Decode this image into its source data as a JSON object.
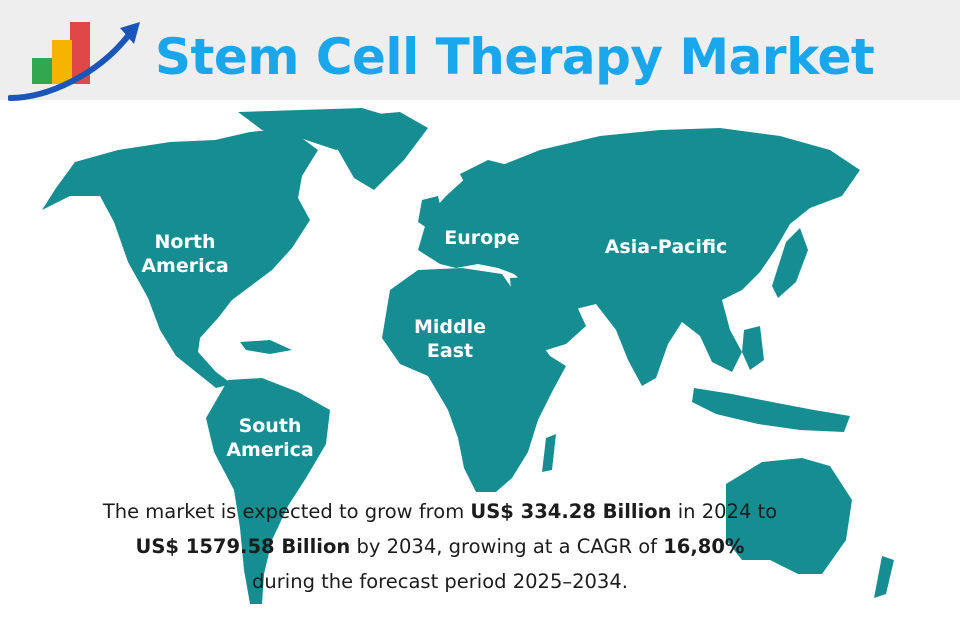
{
  "header": {
    "title": "Stem Cell Therapy Market",
    "logo_icon": "growth-bar-chart-arrow-icon",
    "colors": {
      "title": "#1aa6ea",
      "band": "#eeeeee",
      "bar_green": "#2fa84f",
      "bar_yellow": "#f5b400",
      "bar_red": "#e04848",
      "arrow": "#1a56b8"
    }
  },
  "map": {
    "land_color": "#168e91",
    "regions": [
      {
        "id": "north-america",
        "label_lines": [
          "North",
          "America"
        ]
      },
      {
        "id": "europe",
        "label_lines": [
          "Europe"
        ]
      },
      {
        "id": "asia-pacific",
        "label_lines": [
          "Asia-Pacific"
        ]
      },
      {
        "id": "middle-east",
        "label_lines": [
          "Middle",
          "East"
        ]
      },
      {
        "id": "south-america",
        "label_lines": [
          "South",
          "America"
        ]
      }
    ]
  },
  "summary": {
    "line1_prefix": "The market is expected to grow from ",
    "value_2024": "US$ 334.28 Billion",
    "line1_suffix": " in 2024 to",
    "value_2034": "US$ 1579.58 Billion",
    "line2_middle": " by 2034, growing at a CAGR of ",
    "cagr": "16,80%",
    "line3": "during the forecast period 2025–2034."
  }
}
